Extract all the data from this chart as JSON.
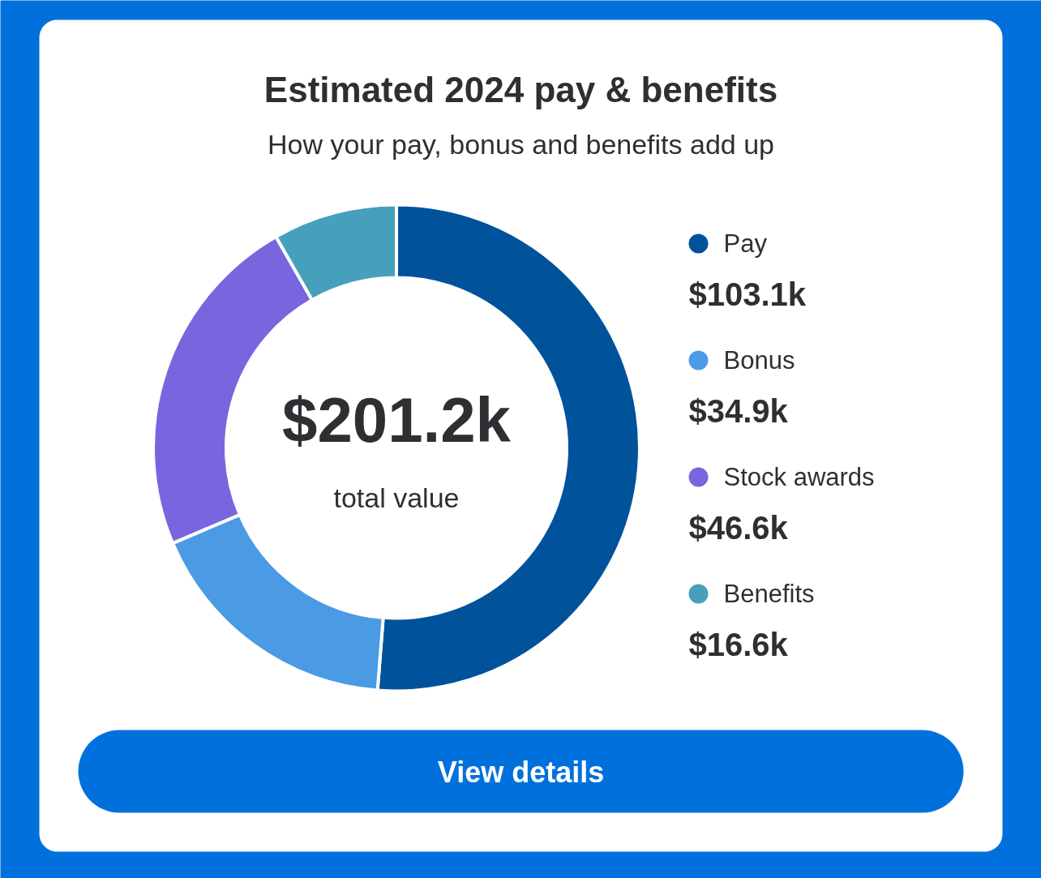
{
  "chart_data": {
    "type": "donut",
    "title": "Estimated 2024 pay & benefits",
    "subtitle": "How your pay, bonus and benefits add up",
    "categories": [
      "Pay",
      "Bonus",
      "Stock awards",
      "Benefits"
    ],
    "values": [
      103.1,
      34.9,
      46.6,
      16.6
    ],
    "colors": [
      "#00529b",
      "#4a9ae4",
      "#7766de",
      "#47a0bb"
    ],
    "value_labels": [
      "$103.1k",
      "$34.9k",
      "$46.6k",
      "$16.6k"
    ],
    "annotations": [
      "$201.2k",
      "total value",
      "View details"
    ],
    "legend": "right"
  }
}
